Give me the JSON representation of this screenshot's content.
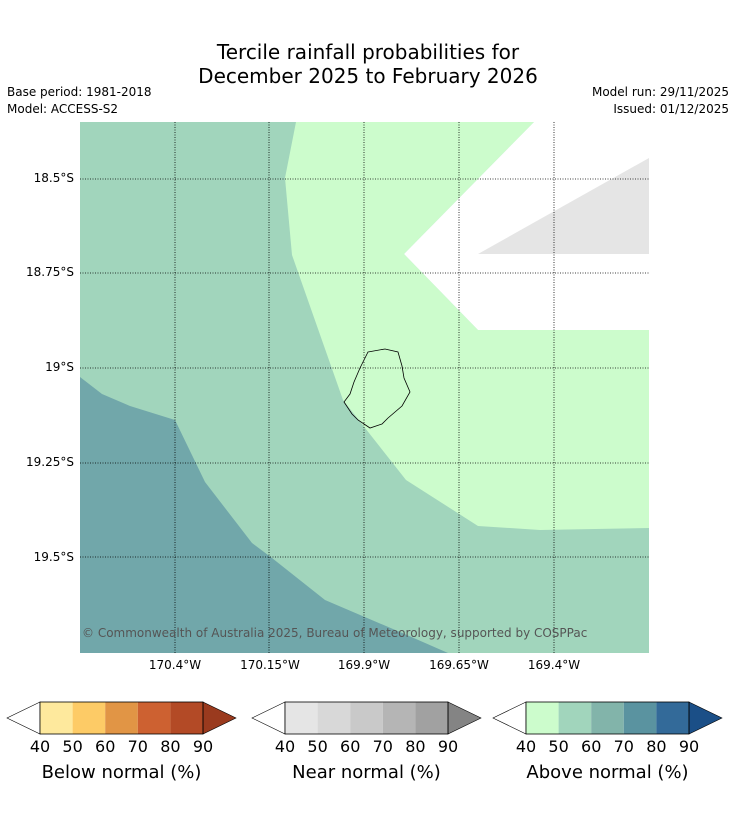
{
  "title": {
    "line1": "Tercile rainfall probabilities for",
    "line2": "December 2025 to February 2026"
  },
  "meta": {
    "base_period": "Base period: 1981-2018",
    "model": "Model: ACCESS-S2",
    "model_run": "Model run: 29/11/2025",
    "issued": "Issued: 01/12/2025"
  },
  "map": {
    "lat_labels": [
      "18.5°S",
      "18.75°S",
      "19°S",
      "19.25°S",
      "19.5°S"
    ],
    "lon_labels": [
      "170.4°W",
      "170.15°W",
      "169.9°W",
      "169.65°W",
      "169.4°W"
    ],
    "copyright": "© Commonwealth of Australia 2025, Bureau of Meteorology, supported by COSPPac",
    "colors": {
      "above_50": "#a1d5bc",
      "above_40": "#ccfccc",
      "above_60": "#71a7aa",
      "near_40": "#e5e5e5"
    }
  },
  "colorbars": [
    {
      "title": "Below normal (%)",
      "ticks": [
        "40",
        "50",
        "60",
        "70",
        "80",
        "90"
      ],
      "colors": [
        "#ffffff",
        "#fee99d",
        "#fdcb66",
        "#e19545",
        "#cd6131",
        "#b34a26",
        "#9a3a1e"
      ]
    },
    {
      "title": "Near normal (%)",
      "ticks": [
        "40",
        "50",
        "60",
        "70",
        "80",
        "90"
      ],
      "colors": [
        "#ffffff",
        "#e5e5e5",
        "#d8d8d8",
        "#c9c9c9",
        "#b5b5b5",
        "#a1a1a1",
        "#848484"
      ]
    },
    {
      "title": "Above normal (%)",
      "ticks": [
        "40",
        "50",
        "60",
        "70",
        "80",
        "90"
      ],
      "colors": [
        "#ffffff",
        "#ccfccc",
        "#a1d5bc",
        "#82b4aa",
        "#5a93a0",
        "#336a99",
        "#1b4f87"
      ]
    }
  ]
}
